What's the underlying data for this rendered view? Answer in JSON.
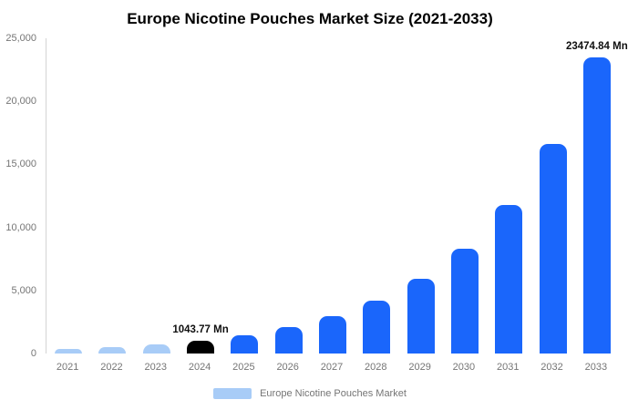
{
  "title": "Europe Nicotine Pouches Market Size (2021-2033)",
  "legend": {
    "label": "Europe Nicotine Pouches Market",
    "swatch_color": "#a8ccf7"
  },
  "chart_data": {
    "type": "bar",
    "title": "Europe Nicotine Pouches Market Size (2021-2033)",
    "xlabel": "",
    "ylabel": "",
    "unit": "Mn",
    "categories": [
      "2021",
      "2022",
      "2023",
      "2024",
      "2025",
      "2026",
      "2027",
      "2028",
      "2029",
      "2030",
      "2031",
      "2032",
      "2033"
    ],
    "values": [
      370,
      520,
      740,
      1043.77,
      1480,
      2090,
      2950,
      4170,
      5890,
      8320,
      11760,
      16620,
      23474.84
    ],
    "bar_colors": [
      "#a8ccf7",
      "#a8ccf7",
      "#a8ccf7",
      "#000000",
      "#1a66fb",
      "#1a66fb",
      "#1a66fb",
      "#1a66fb",
      "#1a66fb",
      "#1a66fb",
      "#1a66fb",
      "#1a66fb",
      "#1a66fb"
    ],
    "data_labels": [
      {
        "index": 3,
        "text": "1043.77 Mn"
      },
      {
        "index": 12,
        "text": "23474.84 Mn"
      }
    ],
    "ylim": [
      0,
      25000
    ],
    "ytick_labels": [
      "0",
      "5,000",
      "10,000",
      "15,000",
      "20,000",
      "25,000"
    ],
    "grid": false,
    "legend": [
      "Europe Nicotine Pouches Market"
    ],
    "legend_position": "bottom"
  }
}
